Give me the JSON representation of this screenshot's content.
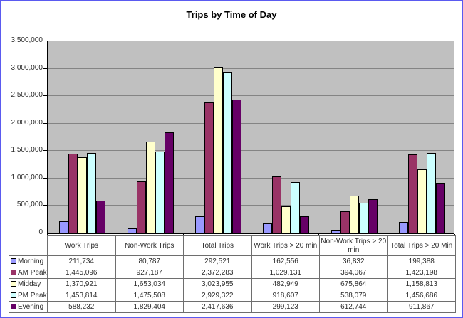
{
  "title": "Trips by Time of Day",
  "colors": {
    "frame_border": "#5a5af0",
    "plot_background": "#c0c0c0",
    "gridline": "#848484",
    "axis": "#000000",
    "series_morning": "#9999ff",
    "series_am_peak": "#993366",
    "series_midday": "#ffffcc",
    "series_pm_peak": "#ccffff",
    "series_evening": "#660066"
  },
  "chart_data": {
    "type": "bar",
    "title": "Trips by Time of Day",
    "xlabel": "",
    "ylabel": "",
    "ylim": [
      0,
      3500000
    ],
    "y_step": 500000,
    "grid": true,
    "legend_position": "table-left-column",
    "categories": [
      "Work Trips",
      "Non-Work Trips",
      "Total Trips",
      "Work Trips > 20 min",
      "Non-Work Trips > 20 min",
      "Total Trips > 20 Min"
    ],
    "y_tick_labels": [
      "3,500,000",
      "3,000,000",
      "2,500,000",
      "2,000,000",
      "1,500,000",
      "1,000,000",
      "500,000",
      "0"
    ],
    "series": [
      {
        "name": "Morning",
        "color": "#9999ff",
        "values": [
          211734,
          80787,
          292521,
          162556,
          36832,
          199388
        ]
      },
      {
        "name": "AM Peak",
        "color": "#993366",
        "values": [
          1445096,
          927187,
          2372283,
          1029131,
          394067,
          1423198
        ]
      },
      {
        "name": "Midday",
        "color": "#ffffcc",
        "values": [
          1370921,
          1653034,
          3023955,
          482949,
          675864,
          1158813
        ]
      },
      {
        "name": "PM Peak",
        "color": "#ccffff",
        "values": [
          1453814,
          1475508,
          2929322,
          918607,
          538079,
          1456686
        ]
      },
      {
        "name": "Evening",
        "color": "#660066",
        "values": [
          588232,
          1829404,
          2417636,
          299123,
          612744,
          911867
        ]
      }
    ]
  },
  "table": {
    "column_headers": [
      "Work Trips",
      "Non-Work Trips",
      "Total Trips",
      "Work Trips > 20 min",
      "Non-Work Trips > 20 min",
      "Total Trips > 20 Min"
    ],
    "rows": [
      {
        "label": "Morning",
        "swatch": "#9999ff",
        "values": [
          "211,734",
          "80,787",
          "292,521",
          "162,556",
          "36,832",
          "199,388"
        ]
      },
      {
        "label": "AM Peak",
        "swatch": "#993366",
        "values": [
          "1,445,096",
          "927,187",
          "2,372,283",
          "1,029,131",
          "394,067",
          "1,423,198"
        ]
      },
      {
        "label": "Midday",
        "swatch": "#ffffcc",
        "values": [
          "1,370,921",
          "1,653,034",
          "3,023,955",
          "482,949",
          "675,864",
          "1,158,813"
        ]
      },
      {
        "label": "PM Peak",
        "swatch": "#ccffff",
        "values": [
          "1,453,814",
          "1,475,508",
          "2,929,322",
          "918,607",
          "538,079",
          "1,456,686"
        ]
      },
      {
        "label": "Evening",
        "swatch": "#660066",
        "values": [
          "588,232",
          "1,829,404",
          "2,417,636",
          "299,123",
          "612,744",
          "911,867"
        ]
      }
    ]
  }
}
